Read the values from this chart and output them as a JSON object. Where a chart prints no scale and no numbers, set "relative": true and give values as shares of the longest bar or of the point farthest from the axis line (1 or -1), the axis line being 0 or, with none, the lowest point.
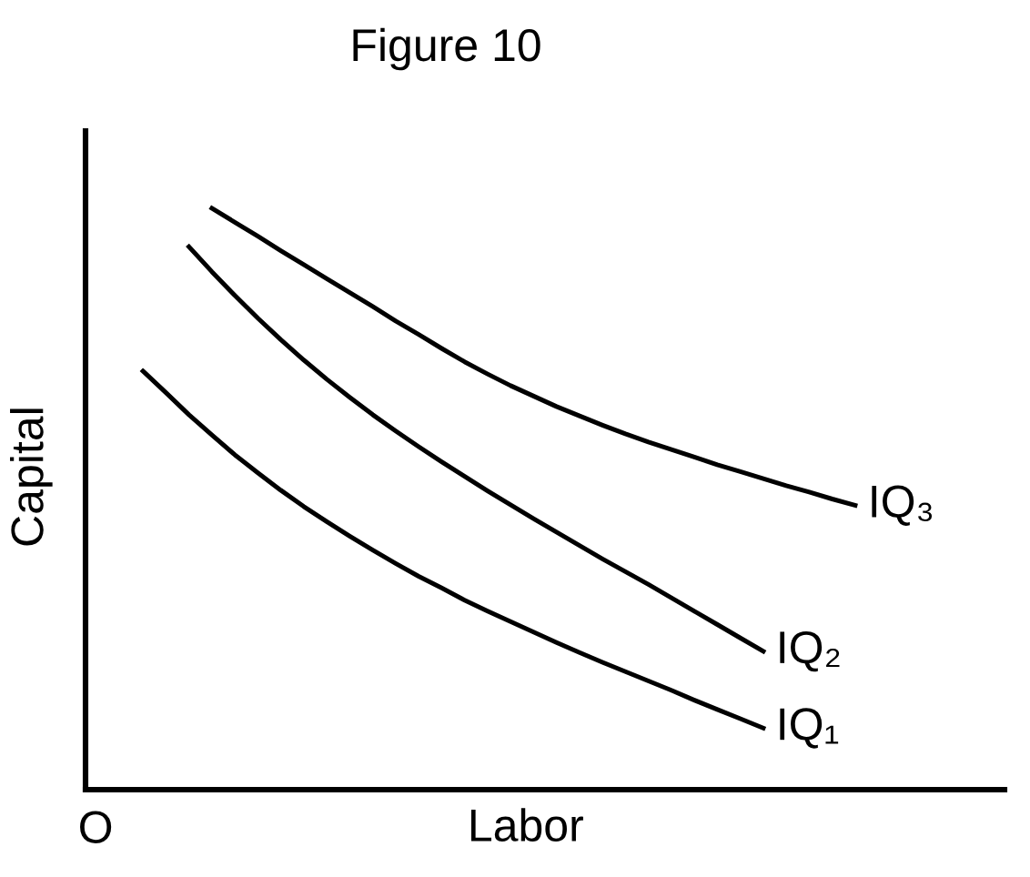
{
  "chart_data": {
    "type": "line",
    "title": "Figure 10",
    "xlabel": "Labor",
    "ylabel": "Capital",
    "annotations": [
      "O"
    ],
    "relative": true,
    "categories": [
      null,
      null,
      null,
      null,
      null,
      null,
      null,
      null,
      null,
      null,
      null,
      null,
      null,
      null,
      null,
      null,
      null,
      null,
      null,
      null,
      null,
      null,
      null,
      null,
      null,
      null,
      null,
      null,
      null,
      null,
      null,
      null,
      null,
      null,
      null,
      null,
      null,
      null,
      null,
      null
    ],
    "series": [
      {
        "name": "IQ₁",
        "color": "#000000",
        "values": [
          null,
          null,
          0.72,
          0.683,
          0.645,
          0.61,
          0.576,
          0.545,
          0.515,
          0.487,
          0.461,
          0.436,
          0.412,
          0.389,
          0.367,
          0.347,
          0.326,
          0.307,
          0.289,
          0.271,
          0.253,
          0.236,
          0.219,
          0.203,
          0.187,
          0.171,
          0.154,
          0.138,
          0.122,
          0.106,
          null,
          null,
          null,
          null,
          null,
          null,
          null,
          null,
          null,
          null
        ]
      },
      {
        "name": "IQ₂",
        "color": "#000000",
        "values": [
          null,
          null,
          null,
          null,
          0.934,
          0.891,
          0.85,
          0.811,
          0.774,
          0.739,
          0.706,
          0.675,
          0.645,
          0.617,
          0.59,
          0.564,
          0.539,
          0.514,
          0.49,
          0.466,
          0.443,
          0.42,
          0.397,
          0.375,
          0.353,
          0.33,
          0.307,
          0.284,
          0.261,
          0.238,
          null,
          null,
          null,
          null,
          null,
          null,
          null,
          null,
          null,
          null
        ]
      },
      {
        "name": "IQ₃",
        "color": "#000000",
        "values": [
          null,
          null,
          null,
          null,
          null,
          1.0,
          0.976,
          0.952,
          0.927,
          0.903,
          0.879,
          0.855,
          0.831,
          0.806,
          0.783,
          0.759,
          0.736,
          0.715,
          0.695,
          0.677,
          0.659,
          0.643,
          0.627,
          0.612,
          0.598,
          0.585,
          0.572,
          0.559,
          0.547,
          0.535,
          0.523,
          0.512,
          0.5,
          0.489,
          null,
          null,
          null,
          null,
          null,
          null
        ]
      }
    ]
  }
}
